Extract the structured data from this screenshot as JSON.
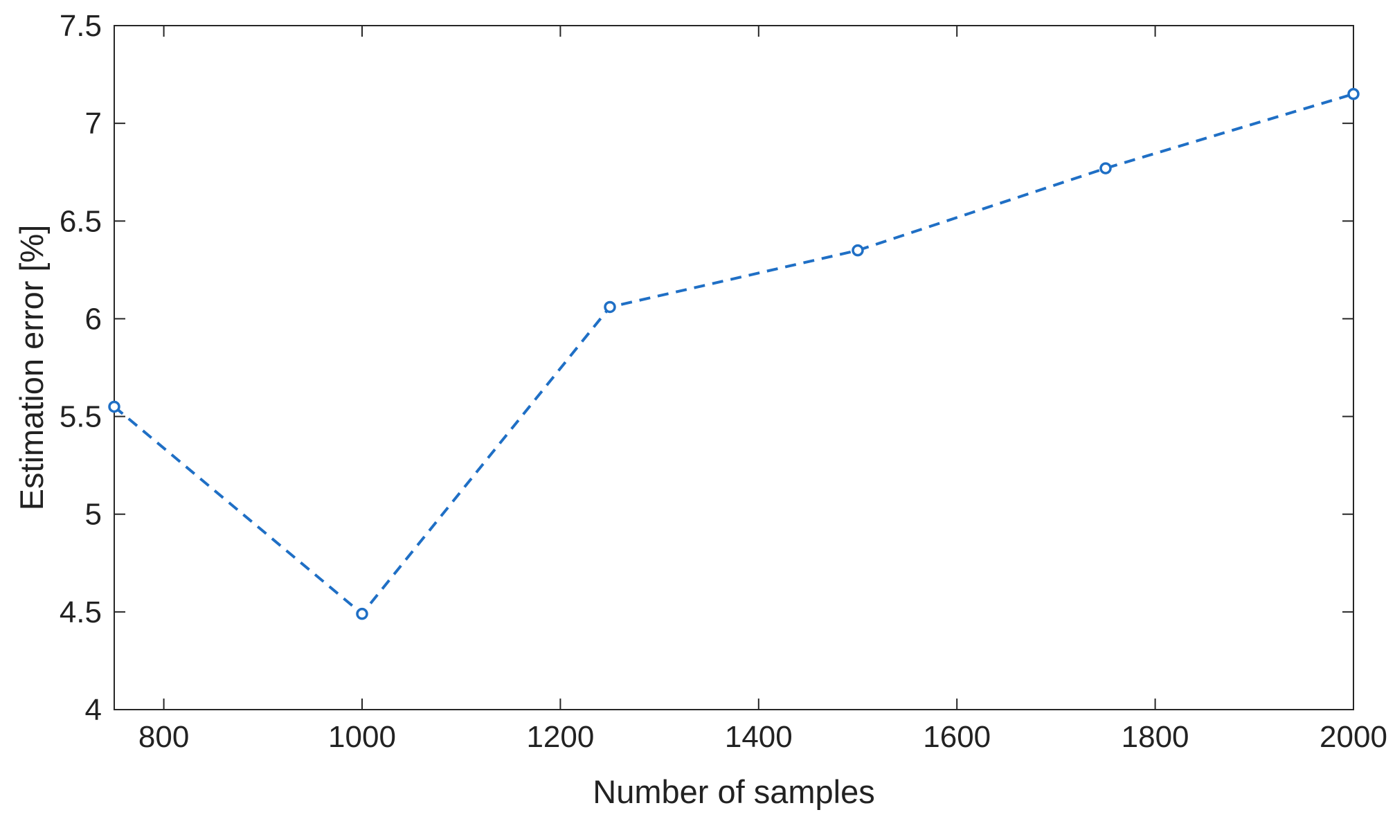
{
  "chart_data": {
    "type": "line",
    "title": "",
    "xlabel": "Number of samples",
    "ylabel": "Estimation error [%]",
    "xlim": [
      750,
      2000
    ],
    "ylim": [
      4,
      7.5
    ],
    "xticks": [
      "800",
      "1000",
      "1200",
      "1400",
      "1600",
      "1800",
      "2000"
    ],
    "yticks": [
      "4",
      "4.5",
      "5",
      "5.5",
      "6",
      "6.5",
      "7",
      "7.5"
    ],
    "grid": false,
    "legend": "none",
    "series": [
      {
        "x": [
          750,
          1000,
          1250,
          1500,
          1750,
          2000
        ],
        "y": [
          5.55,
          4.49,
          6.06,
          6.35,
          6.77,
          7.15
        ],
        "line_style": "dashed",
        "marker": "circle",
        "color": "#1f6fc5"
      }
    ]
  }
}
